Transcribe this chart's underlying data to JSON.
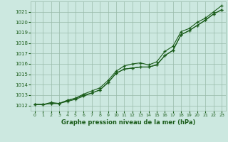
{
  "x": [
    0,
    1,
    2,
    3,
    4,
    5,
    6,
    7,
    8,
    9,
    10,
    11,
    12,
    13,
    14,
    15,
    16,
    17,
    18,
    19,
    20,
    21,
    22,
    23
  ],
  "line1": [
    1012.1,
    1012.1,
    1012.2,
    1012.2,
    1012.5,
    1012.7,
    1013.0,
    1013.2,
    1013.5,
    1014.2,
    1015.1,
    1015.5,
    1015.6,
    1015.7,
    1015.7,
    1015.9,
    1016.8,
    1017.3,
    1018.8,
    1019.2,
    1019.7,
    1020.2,
    1020.8,
    1021.2
  ],
  "line2": [
    1012.1,
    1012.1,
    1012.2,
    1012.2,
    1012.4,
    1012.6,
    1012.9,
    1013.2,
    1013.5,
    1014.2,
    1015.1,
    1015.5,
    1015.6,
    1015.7,
    1015.7,
    1015.9,
    1016.8,
    1017.3,
    1018.8,
    1019.2,
    1019.7,
    1020.2,
    1020.8,
    1021.2
  ],
  "line3": [
    1012.1,
    1012.1,
    1012.3,
    1012.2,
    1012.5,
    1012.7,
    1013.1,
    1013.4,
    1013.7,
    1014.4,
    1015.3,
    1015.8,
    1016.0,
    1016.1,
    1015.9,
    1016.2,
    1017.2,
    1017.7,
    1019.1,
    1019.4,
    1020.0,
    1020.4,
    1021.0,
    1021.6
  ],
  "bg_color": "#cce8e0",
  "grid_color": "#99bbaa",
  "line_color": "#1a5c1a",
  "xlabel": "Graphe pression niveau de la mer (hPa)",
  "ylim": [
    1011.5,
    1022.0
  ],
  "xlim": [
    -0.5,
    23.5
  ],
  "yticks": [
    1012,
    1013,
    1014,
    1015,
    1016,
    1017,
    1018,
    1019,
    1020,
    1021
  ],
  "xticks": [
    0,
    1,
    2,
    3,
    4,
    5,
    6,
    7,
    8,
    9,
    10,
    11,
    12,
    13,
    14,
    15,
    16,
    17,
    18,
    19,
    20,
    21,
    22,
    23
  ]
}
